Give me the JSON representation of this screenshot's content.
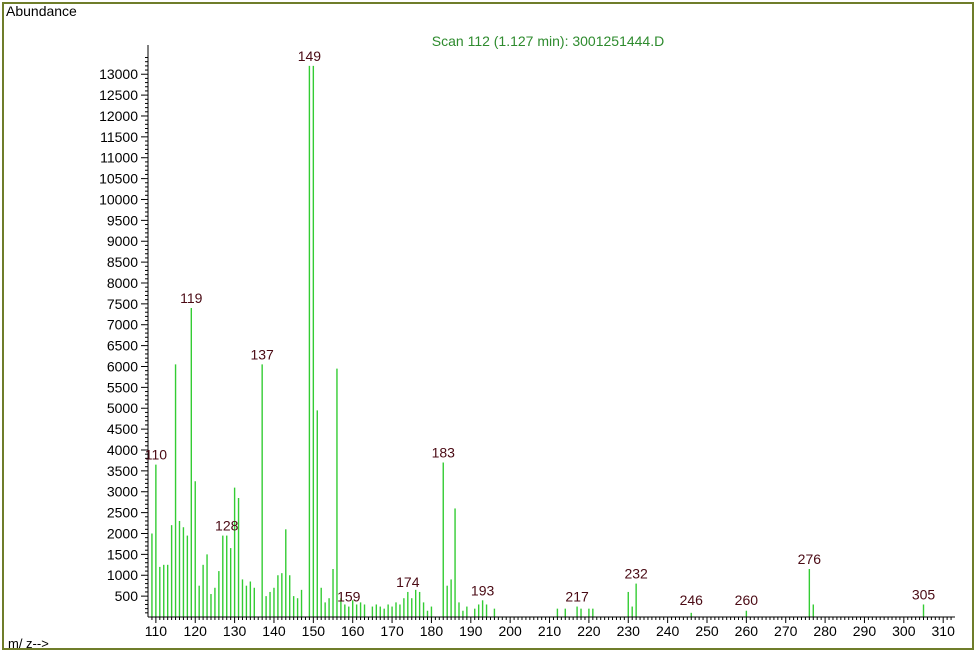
{
  "chart_data": {
    "type": "bar",
    "title": "Scan 112 (1.127 min): 3001251444.D",
    "ylabel": "Abundance",
    "xlabel": "m/ z-->",
    "xlim": [
      108,
      313
    ],
    "ylim": [
      0,
      13700
    ],
    "grid": false,
    "colors": {
      "bars": "#33cc33",
      "title": "#2e8b2e",
      "peak_labels": "#4a0a14",
      "axis": "#000000",
      "frame": "#6f7d2a"
    },
    "y_ticks": [
      500,
      1000,
      1500,
      2000,
      2500,
      3000,
      3500,
      4000,
      4500,
      5000,
      5500,
      6000,
      6500,
      7000,
      7500,
      8000,
      8500,
      9000,
      9500,
      10000,
      10500,
      11000,
      11500,
      12000,
      12500,
      13000
    ],
    "x_tick_labels": [
      "110",
      "120",
      "130",
      "140",
      "150",
      "160",
      "170",
      "180",
      "190",
      "200",
      "210",
      "220",
      "230",
      "240",
      "250",
      "260",
      "270",
      "280",
      "290",
      "300",
      "310"
    ],
    "peak_labels": [
      {
        "mz": 110,
        "text": "110"
      },
      {
        "mz": 119,
        "text": "119"
      },
      {
        "mz": 128,
        "text": "128"
      },
      {
        "mz": 137,
        "text": "137"
      },
      {
        "mz": 149,
        "text": "149"
      },
      {
        "mz": 159,
        "text": "159"
      },
      {
        "mz": 174,
        "text": "174"
      },
      {
        "mz": 183,
        "text": "183"
      },
      {
        "mz": 193,
        "text": "193"
      },
      {
        "mz": 217,
        "text": "217"
      },
      {
        "mz": 232,
        "text": "232"
      },
      {
        "mz": 246,
        "text": "246"
      },
      {
        "mz": 260,
        "text": "260"
      },
      {
        "mz": 276,
        "text": "276"
      },
      {
        "mz": 305,
        "text": "305"
      }
    ],
    "peaks": [
      {
        "mz": 109,
        "abundance": 2000
      },
      {
        "mz": 110,
        "abundance": 3650
      },
      {
        "mz": 111,
        "abundance": 1200
      },
      {
        "mz": 112,
        "abundance": 1250
      },
      {
        "mz": 113,
        "abundance": 1250
      },
      {
        "mz": 114,
        "abundance": 2200
      },
      {
        "mz": 115,
        "abundance": 6050
      },
      {
        "mz": 116,
        "abundance": 2300
      },
      {
        "mz": 117,
        "abundance": 2150
      },
      {
        "mz": 118,
        "abundance": 1950
      },
      {
        "mz": 119,
        "abundance": 7400
      },
      {
        "mz": 120,
        "abundance": 3250
      },
      {
        "mz": 121,
        "abundance": 750
      },
      {
        "mz": 122,
        "abundance": 1250
      },
      {
        "mz": 123,
        "abundance": 1500
      },
      {
        "mz": 124,
        "abundance": 550
      },
      {
        "mz": 125,
        "abundance": 700
      },
      {
        "mz": 126,
        "abundance": 1100
      },
      {
        "mz": 127,
        "abundance": 1950
      },
      {
        "mz": 128,
        "abundance": 1950
      },
      {
        "mz": 129,
        "abundance": 1650
      },
      {
        "mz": 130,
        "abundance": 3100
      },
      {
        "mz": 131,
        "abundance": 2850
      },
      {
        "mz": 132,
        "abundance": 900
      },
      {
        "mz": 133,
        "abundance": 750
      },
      {
        "mz": 134,
        "abundance": 850
      },
      {
        "mz": 135,
        "abundance": 700
      },
      {
        "mz": 137,
        "abundance": 6050
      },
      {
        "mz": 138,
        "abundance": 500
      },
      {
        "mz": 139,
        "abundance": 600
      },
      {
        "mz": 140,
        "abundance": 700
      },
      {
        "mz": 141,
        "abundance": 1000
      },
      {
        "mz": 142,
        "abundance": 1050
      },
      {
        "mz": 143,
        "abundance": 2100
      },
      {
        "mz": 144,
        "abundance": 1000
      },
      {
        "mz": 145,
        "abundance": 500
      },
      {
        "mz": 146,
        "abundance": 450
      },
      {
        "mz": 147,
        "abundance": 650
      },
      {
        "mz": 149,
        "abundance": 13200
      },
      {
        "mz": 150,
        "abundance": 13200
      },
      {
        "mz": 151,
        "abundance": 4950
      },
      {
        "mz": 152,
        "abundance": 700
      },
      {
        "mz": 153,
        "abundance": 350
      },
      {
        "mz": 154,
        "abundance": 450
      },
      {
        "mz": 155,
        "abundance": 1150
      },
      {
        "mz": 156,
        "abundance": 5950
      },
      {
        "mz": 157,
        "abundance": 450
      },
      {
        "mz": 158,
        "abundance": 300
      },
      {
        "mz": 159,
        "abundance": 250
      },
      {
        "mz": 160,
        "abundance": 400
      },
      {
        "mz": 161,
        "abundance": 300
      },
      {
        "mz": 162,
        "abundance": 350
      },
      {
        "mz": 163,
        "abundance": 300
      },
      {
        "mz": 165,
        "abundance": 250
      },
      {
        "mz": 166,
        "abundance": 300
      },
      {
        "mz": 167,
        "abundance": 250
      },
      {
        "mz": 168,
        "abundance": 200
      },
      {
        "mz": 169,
        "abundance": 300
      },
      {
        "mz": 170,
        "abundance": 250
      },
      {
        "mz": 171,
        "abundance": 350
      },
      {
        "mz": 172,
        "abundance": 300
      },
      {
        "mz": 173,
        "abundance": 450
      },
      {
        "mz": 174,
        "abundance": 600
      },
      {
        "mz": 175,
        "abundance": 450
      },
      {
        "mz": 176,
        "abundance": 650
      },
      {
        "mz": 177,
        "abundance": 600
      },
      {
        "mz": 178,
        "abundance": 350
      },
      {
        "mz": 179,
        "abundance": 150
      },
      {
        "mz": 180,
        "abundance": 250
      },
      {
        "mz": 183,
        "abundance": 3700
      },
      {
        "mz": 184,
        "abundance": 750
      },
      {
        "mz": 185,
        "abundance": 900
      },
      {
        "mz": 186,
        "abundance": 2600
      },
      {
        "mz": 187,
        "abundance": 350
      },
      {
        "mz": 188,
        "abundance": 150
      },
      {
        "mz": 189,
        "abundance": 250
      },
      {
        "mz": 191,
        "abundance": 200
      },
      {
        "mz": 192,
        "abundance": 300
      },
      {
        "mz": 193,
        "abundance": 400
      },
      {
        "mz": 194,
        "abundance": 300
      },
      {
        "mz": 196,
        "abundance": 200
      },
      {
        "mz": 212,
        "abundance": 200
      },
      {
        "mz": 214,
        "abundance": 200
      },
      {
        "mz": 217,
        "abundance": 250
      },
      {
        "mz": 218,
        "abundance": 200
      },
      {
        "mz": 220,
        "abundance": 200
      },
      {
        "mz": 221,
        "abundance": 200
      },
      {
        "mz": 230,
        "abundance": 600
      },
      {
        "mz": 231,
        "abundance": 250
      },
      {
        "mz": 232,
        "abundance": 800
      },
      {
        "mz": 246,
        "abundance": 100
      },
      {
        "mz": 260,
        "abundance": 150
      },
      {
        "mz": 276,
        "abundance": 1150
      },
      {
        "mz": 277,
        "abundance": 300
      },
      {
        "mz": 305,
        "abundance": 300
      }
    ]
  }
}
